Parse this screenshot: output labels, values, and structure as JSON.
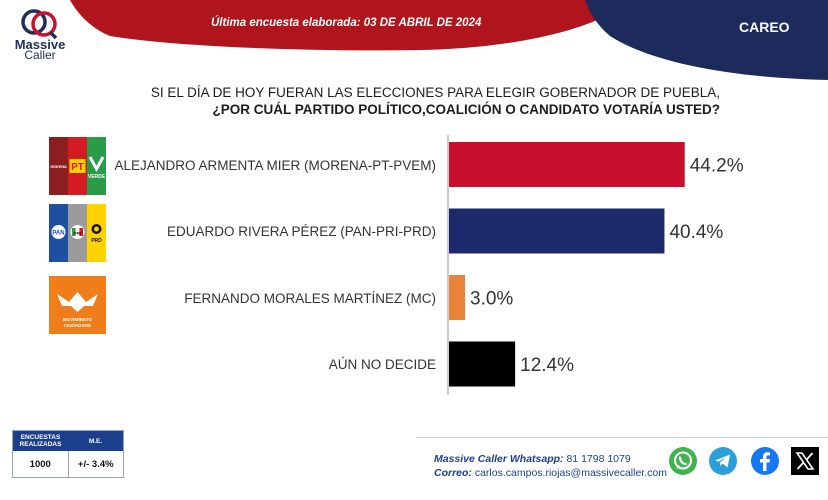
{
  "brand": {
    "line1": "Massive",
    "line2": "Caller"
  },
  "header": {
    "survey_label": "Última encuesta elaborada:",
    "survey_date": "03 DE ABRIL DE 2024",
    "tag": "CAREO"
  },
  "question": {
    "line1": "SI EL DÍA DE HOY FUERAN LAS ELECCIONES PARA ELEGIR GOBERNADOR DE PUEBLA,",
    "line2": "¿POR CUÁL PARTIDO POLÍTICO,COALICIÓN  O CANDIDATO VOTARÍA USTED?"
  },
  "logos": {
    "morena_word": "morena",
    "pt_word": "PT",
    "verde_word": "VERDE",
    "pan_word": "PAN",
    "pri_word": "PRI",
    "prd_word": "PRD",
    "mc_line1": "MOVIMIENTO",
    "mc_line2": "CIUDADANO"
  },
  "chart_data": {
    "type": "bar",
    "orientation": "horizontal",
    "categories": [
      "ALEJANDRO ARMENTA MIER (MORENA-PT-PVEM)",
      "EDUARDO RIVERA PÉREZ (PAN-PRI-PRD)",
      "FERNANDO MORALES MARTÍNEZ (MC)",
      "AÚN NO DECIDE"
    ],
    "values": [
      44.2,
      40.4,
      3.0,
      12.4
    ],
    "value_labels": [
      "44.2%",
      "40.4%",
      "3.0%",
      "12.4%"
    ],
    "colors": [
      "#c8102e",
      "#1c2a6b",
      "#e8833a",
      "#000000"
    ],
    "xlim": [
      0,
      60
    ],
    "grid": false,
    "legend": "none"
  },
  "stats": {
    "col1_header": "ENCUESTAS REALIZADAS",
    "col2_header": "M.E.",
    "surveys": "1000",
    "margin": "+/- 3.4%"
  },
  "contact": {
    "whatsapp_label": "Massive Caller Whatsapp:",
    "whatsapp": "81 1798 1079",
    "email_label": "Correo:",
    "email": "carlos.campos.riojas@massivecaller.com"
  },
  "colors": {
    "header_red": "#b0151d",
    "header_navy": "#1c2a5c",
    "brand_navy": "#1f2f59",
    "link_blue": "#1c3f8c"
  },
  "icons": [
    "whatsapp-icon",
    "telegram-icon",
    "facebook-icon",
    "x-icon"
  ]
}
